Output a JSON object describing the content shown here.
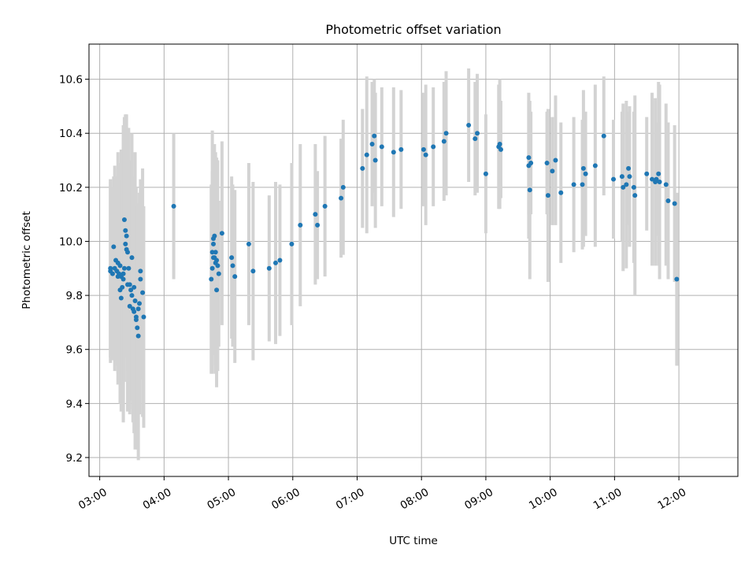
{
  "chart_data": {
    "type": "scatter",
    "title": "Photometric offset variation",
    "xlabel": "UTC time",
    "ylabel": "Photometric offset",
    "x_tick_labels": [
      "03:00",
      "04:00",
      "05:00",
      "06:00",
      "07:00",
      "08:00",
      "09:00",
      "10:00",
      "11:00",
      "12:00"
    ],
    "y_tick_labels": [
      "9.2",
      "9.4",
      "9.6",
      "9.8",
      "10.0",
      "10.2",
      "10.4",
      "10.6"
    ],
    "y_ticks": [
      9.2,
      9.4,
      9.6,
      9.8,
      10.0,
      10.2,
      10.4,
      10.6
    ],
    "xlim": [
      "02:50",
      "12:55"
    ],
    "ylim": [
      9.13,
      10.73
    ],
    "grid": true,
    "colors": {
      "point": "#1f77b4",
      "errorbar": "#d3d3d3",
      "grid": "#b0b0b0"
    },
    "series": [
      {
        "x": [
          "03:10",
          "03:10",
          "03:12",
          "03:13",
          "03:14",
          "03:15",
          "03:16",
          "03:17",
          "03:17",
          "03:18",
          "03:19",
          "03:19",
          "03:20",
          "03:20",
          "03:21",
          "03:22",
          "03:22",
          "03:23",
          "03:23",
          "03:24",
          "03:24",
          "03:25",
          "03:25",
          "03:26",
          "03:26",
          "03:27",
          "03:28",
          "03:28",
          "03:29",
          "03:30",
          "03:30",
          "03:31",
          "03:32",
          "03:32",
          "03:33",
          "03:34",
          "03:34",
          "03:35",
          "03:36",
          "03:36",
          "03:37",
          "03:38",
          "03:38",
          "03:40",
          "03:41",
          "04:09",
          "04:44",
          "04:45",
          "04:45",
          "04:46",
          "04:46",
          "04:46",
          "04:47",
          "04:47",
          "04:48",
          "04:48",
          "04:49",
          "04:49",
          "04:50",
          "04:51",
          "04:54",
          "05:03",
          "05:04",
          "05:06",
          "05:19",
          "05:23",
          "05:38",
          "05:44",
          "05:48",
          "05:59",
          "06:07",
          "06:21",
          "06:23",
          "06:30",
          "06:45",
          "06:47",
          "07:05",
          "07:09",
          "07:14",
          "07:16",
          "07:17",
          "07:23",
          "07:34",
          "07:41",
          "08:02",
          "08:04",
          "08:11",
          "08:21",
          "08:23",
          "08:44",
          "08:50",
          "08:52",
          "09:00",
          "09:12",
          "09:13",
          "09:14",
          "09:40",
          "09:40",
          "09:41",
          "09:42",
          "09:57",
          "09:58",
          "10:02",
          "10:05",
          "10:10",
          "10:22",
          "10:30",
          "10:31",
          "10:33",
          "10:42",
          "10:50",
          "10:59",
          "11:07",
          "11:08",
          "11:11",
          "11:13",
          "11:14",
          "11:18",
          "11:19",
          "11:30",
          "11:35",
          "11:38",
          "11:39",
          "11:41",
          "11:42",
          "11:48",
          "11:50",
          "11:56",
          "11:58"
        ],
        "y": [
          9.9,
          9.89,
          9.88,
          9.98,
          9.9,
          9.93,
          9.89,
          9.92,
          9.87,
          9.88,
          9.91,
          9.82,
          9.87,
          9.79,
          9.83,
          9.86,
          9.88,
          9.9,
          10.08,
          9.99,
          10.04,
          9.97,
          10.02,
          9.84,
          9.96,
          9.9,
          9.84,
          9.76,
          9.82,
          9.8,
          9.94,
          9.75,
          9.83,
          9.74,
          9.78,
          9.72,
          9.71,
          9.68,
          9.65,
          9.75,
          9.77,
          9.86,
          9.89,
          9.81,
          9.72,
          10.13,
          9.86,
          9.9,
          9.96,
          9.94,
          10.01,
          9.99,
          9.94,
          10.02,
          9.92,
          9.96,
          9.93,
          9.82,
          9.91,
          9.88,
          10.03,
          9.94,
          9.91,
          9.87,
          9.99,
          9.89,
          9.9,
          9.92,
          9.93,
          9.99,
          10.06,
          10.1,
          10.06,
          10.13,
          10.16,
          10.2,
          10.27,
          10.32,
          10.36,
          10.39,
          10.3,
          10.35,
          10.33,
          10.34,
          10.34,
          10.32,
          10.35,
          10.37,
          10.4,
          10.43,
          10.38,
          10.4,
          10.25,
          10.35,
          10.36,
          10.34,
          10.28,
          10.31,
          10.19,
          10.29,
          10.29,
          10.17,
          10.26,
          10.3,
          10.18,
          10.21,
          10.21,
          10.27,
          10.25,
          10.28,
          10.39,
          10.23,
          10.24,
          10.2,
          10.21,
          10.27,
          10.24,
          10.2,
          10.17,
          10.25,
          10.23,
          10.22,
          10.23,
          10.25,
          10.22,
          10.21,
          10.15,
          10.14,
          9.86
        ],
        "err": [
          0.33,
          0.34,
          0.32,
          0.26,
          0.38,
          0.3,
          0.35,
          0.41,
          0.4,
          0.39,
          0.38,
          0.42,
          0.47,
          0.42,
          0.4,
          0.52,
          0.55,
          0.42,
          0.38,
          0.4,
          0.43,
          0.38,
          0.45,
          0.47,
          0.44,
          0.52,
          0.46,
          0.4,
          0.35,
          0.39,
          0.46,
          0.42,
          0.41,
          0.45,
          0.55,
          0.48,
          0.41,
          0.45,
          0.46,
          0.39,
          0.41,
          0.37,
          0.3,
          0.46,
          0.41,
          0.27,
          0.35,
          0.36,
          0.45,
          0.36,
          0.32,
          0.37,
          0.36,
          0.34,
          0.41,
          0.32,
          0.38,
          0.36,
          0.39,
          0.27,
          0.34,
          0.3,
          0.3,
          0.32,
          0.3,
          0.33,
          0.27,
          0.3,
          0.28,
          0.3,
          0.3,
          0.26,
          0.2,
          0.26,
          0.22,
          0.25,
          0.22,
          0.29,
          0.23,
          0.21,
          0.25,
          0.22,
          0.24,
          0.22,
          0.21,
          0.26,
          0.22,
          0.22,
          0.23,
          0.21,
          0.21,
          0.22,
          0.22,
          0.23,
          0.24,
          0.18,
          0.27,
          0.21,
          0.33,
          0.19,
          0.19,
          0.32,
          0.2,
          0.24,
          0.26,
          0.25,
          0.24,
          0.29,
          0.23,
          0.3,
          0.22,
          0.22,
          0.24,
          0.31,
          0.31,
          0.21,
          0.26,
          0.28,
          0.37,
          0.21,
          0.32,
          0.31,
          0.21,
          0.34,
          0.36,
          0.3,
          0.29,
          0.29,
          0.32
        ]
      }
    ]
  }
}
